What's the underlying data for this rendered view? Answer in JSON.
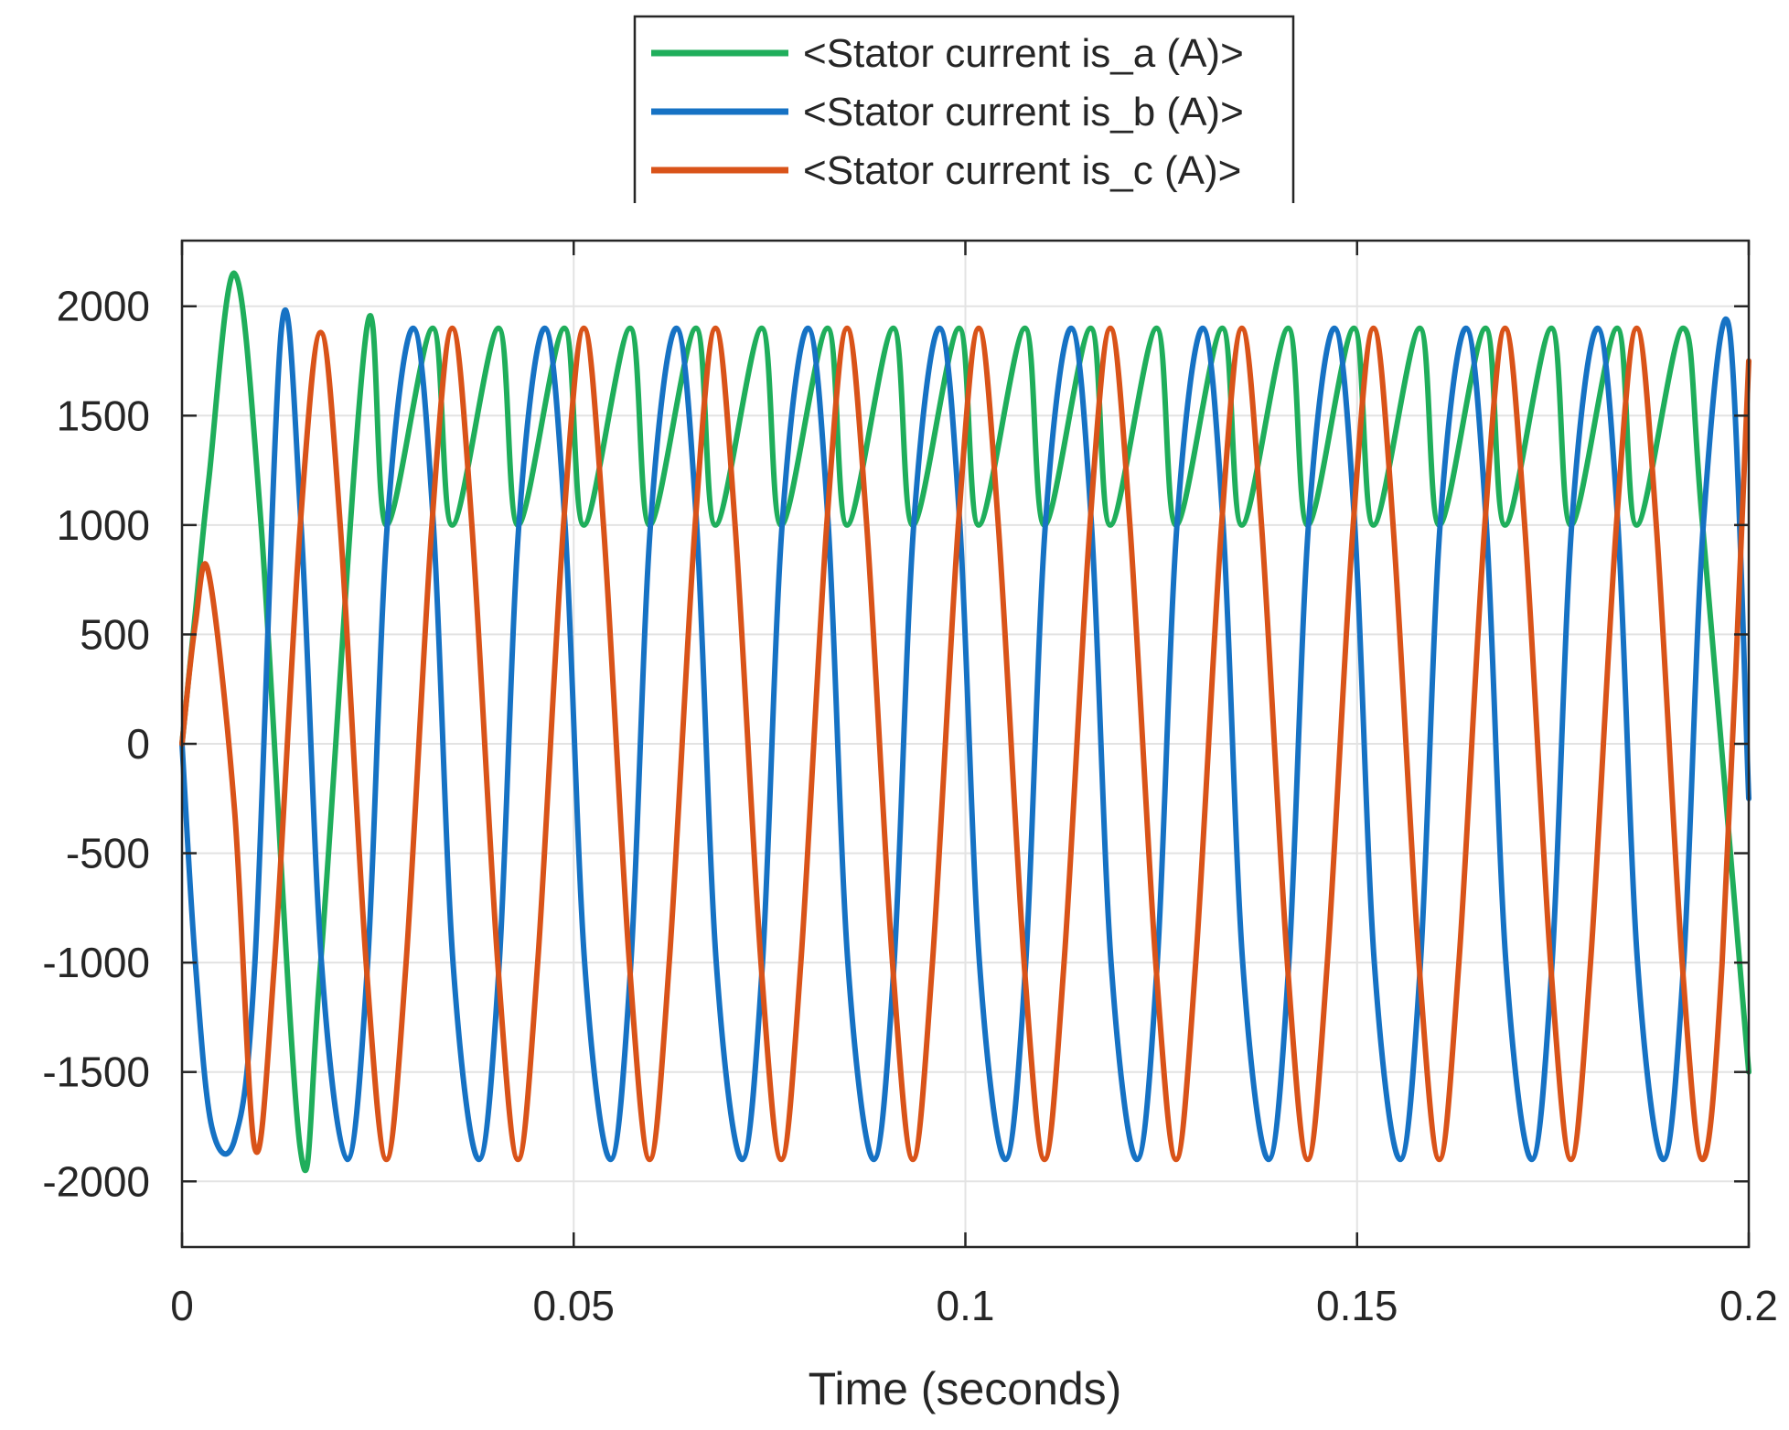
{
  "chart_data": {
    "type": "line",
    "title": "",
    "xlabel": "Time (seconds)",
    "ylabel": "",
    "xlim": [
      0,
      0.2
    ],
    "ylim": [
      -2300,
      2300
    ],
    "grid": true,
    "legend_position": "top-center",
    "x_ticks": [
      0,
      0.05,
      0.1,
      0.15,
      0.2
    ],
    "x_tick_labels": [
      "0",
      "0.05",
      "0.1",
      "0.15",
      "0.2"
    ],
    "y_ticks": [
      2000,
      1500,
      1000,
      500,
      0,
      -500,
      -1000,
      -1500,
      -2000
    ],
    "y_tick_labels": [
      "2000",
      "1500",
      "1000",
      "500",
      "0",
      "-500",
      "-1000",
      "-1500",
      "-2000"
    ],
    "series": [
      {
        "name": "<Stator current is_a (A)>",
        "color": "#1fae5b",
        "x": [
          0,
          0.0017,
          0.0034,
          0.0067,
          0.0101,
          0.0151,
          0.0177,
          0.0236,
          0.0261,
          0.032,
          0.0345,
          0.0404,
          0.0429,
          0.0488,
          0.0513,
          0.0572,
          0.0597,
          0.0656,
          0.0681,
          0.074,
          0.0765,
          0.0824,
          0.0849,
          0.0908,
          0.0933,
          0.0992,
          0.1017,
          0.1076,
          0.1101,
          0.116,
          0.1185,
          0.1244,
          0.1269,
          0.1328,
          0.1353,
          0.1412,
          0.1437,
          0.1496,
          0.1521,
          0.158,
          0.1605,
          0.1664,
          0.1689,
          0.1748,
          0.1773,
          0.1832,
          0.1857,
          0.1916,
          0.1941,
          0.2
        ],
        "y": [
          0,
          600,
          1200,
          2150,
          1000,
          -1850,
          -1000,
          1900,
          1000,
          1900,
          1000,
          1900,
          1000,
          1900,
          1000,
          1900,
          1000,
          1900,
          1000,
          1900,
          1000,
          1900,
          1000,
          1900,
          1000,
          1900,
          1000,
          1900,
          1000,
          1900,
          1000,
          1900,
          1000,
          1900,
          1000,
          1900,
          1000,
          1900,
          1000,
          1900,
          1000,
          1900,
          1000,
          1900,
          1000,
          1900,
          1000,
          1900,
          1000,
          -1500
        ]
      },
      {
        "name": "<Stator current is_b (A)>",
        "color": "#1672c4",
        "x": [
          0,
          0.0017,
          0.0038,
          0.0068,
          0.0093,
          0.0127,
          0.0152,
          0.0178,
          0.0211,
          0.0237,
          0.0262,
          0.0295,
          0.0321,
          0.0346,
          0.0379,
          0.0405,
          0.043,
          0.0463,
          0.0489,
          0.0514,
          0.0547,
          0.0573,
          0.0598,
          0.0631,
          0.0657,
          0.0682,
          0.0715,
          0.0741,
          0.0766,
          0.0799,
          0.0825,
          0.085,
          0.0883,
          0.0909,
          0.0934,
          0.0967,
          0.0993,
          0.1018,
          0.1051,
          0.1077,
          0.1102,
          0.1135,
          0.1161,
          0.1186,
          0.1219,
          0.1245,
          0.127,
          0.1303,
          0.1329,
          0.1354,
          0.1387,
          0.1413,
          0.1438,
          0.1471,
          0.1497,
          0.1522,
          0.1555,
          0.1581,
          0.1606,
          0.1639,
          0.1665,
          0.169,
          0.1723,
          0.1749,
          0.1774,
          0.1807,
          0.1833,
          0.1858,
          0.1891,
          0.1917,
          0.1942,
          0.1975,
          0.2
        ],
        "y": [
          0,
          -1000,
          -1750,
          -1800,
          -1000,
          1900,
          1000,
          -1000,
          -1900,
          -1000,
          1000,
          1900,
          1000,
          -1000,
          -1900,
          -1000,
          1000,
          1900,
          1000,
          -1000,
          -1900,
          -1000,
          1000,
          1900,
          1000,
          -1000,
          -1900,
          -1000,
          1000,
          1900,
          1000,
          -1000,
          -1900,
          -1000,
          1000,
          1900,
          1000,
          -1000,
          -1900,
          -1000,
          1000,
          1900,
          1000,
          -1000,
          -1900,
          -1000,
          1000,
          1900,
          1000,
          -1000,
          -1900,
          -1000,
          1000,
          1900,
          1000,
          -1000,
          -1900,
          -1000,
          1000,
          1900,
          1000,
          -1000,
          -1900,
          -1000,
          1000,
          1900,
          1000,
          -1000,
          -1900,
          -1000,
          1000,
          1900,
          -250
        ]
      },
      {
        "name": "<Stator current is_c (A)>",
        "color": "#d95319",
        "x": [
          0,
          0.0017,
          0.0034,
          0.0067,
          0.0093,
          0.0118,
          0.0151,
          0.0177,
          0.0202,
          0.0235,
          0.0261,
          0.0286,
          0.0319,
          0.0345,
          0.037,
          0.0403,
          0.0429,
          0.0454,
          0.0487,
          0.0513,
          0.0538,
          0.0571,
          0.0597,
          0.0622,
          0.0655,
          0.0681,
          0.0706,
          0.0739,
          0.0765,
          0.079,
          0.0823,
          0.0849,
          0.0874,
          0.0907,
          0.0933,
          0.0958,
          0.0991,
          0.1017,
          0.1042,
          0.1075,
          0.1101,
          0.1126,
          0.1159,
          0.1185,
          0.121,
          0.1243,
          0.1269,
          0.1294,
          0.1327,
          0.1353,
          0.1378,
          0.1411,
          0.1437,
          0.1462,
          0.1495,
          0.1521,
          0.1546,
          0.1579,
          0.1605,
          0.163,
          0.1663,
          0.1689,
          0.1714,
          0.1747,
          0.1773,
          0.1798,
          0.1831,
          0.1857,
          0.1882,
          0.1915,
          0.1941,
          0.1966,
          0.2
        ],
        "y": [
          0,
          550,
          780,
          -300,
          -1850,
          -1000,
          1000,
          1880,
          1000,
          -1000,
          -1900,
          -1000,
          1000,
          1900,
          1000,
          -1000,
          -1900,
          -1000,
          1000,
          1900,
          1000,
          -1000,
          -1900,
          -1000,
          1000,
          1900,
          1000,
          -1000,
          -1900,
          -1000,
          1000,
          1900,
          1000,
          -1000,
          -1900,
          -1000,
          1000,
          1900,
          1000,
          -1000,
          -1900,
          -1000,
          1000,
          1900,
          1000,
          -1000,
          -1900,
          -1000,
          1000,
          1900,
          1000,
          -1000,
          -1900,
          -1000,
          1000,
          1900,
          1000,
          -1000,
          -1900,
          -1000,
          1000,
          1900,
          1000,
          -1000,
          -1900,
          -1000,
          1000,
          1900,
          1000,
          -1000,
          -1900,
          -1000,
          1750
        ]
      }
    ]
  }
}
